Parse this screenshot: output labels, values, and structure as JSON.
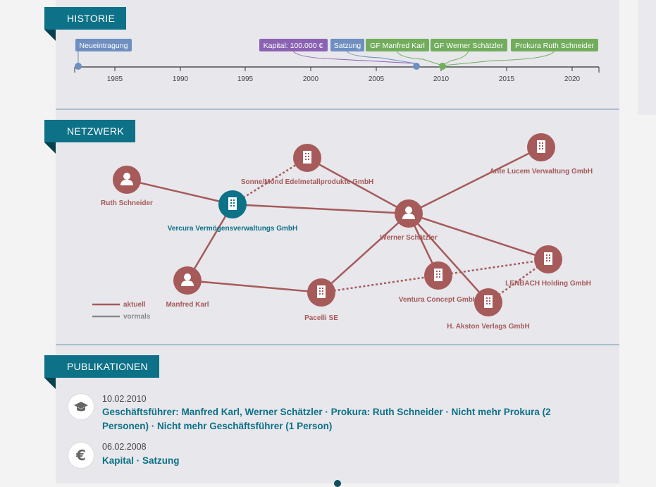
{
  "sections": {
    "historie": "HISTORIE",
    "netzwerk": "NETZWERK",
    "publikationen": "PUBLIKATIONEN"
  },
  "timeline": {
    "ticks": [
      "1985",
      "1990",
      "1995",
      "2000",
      "2005",
      "2010",
      "2015",
      "2020"
    ],
    "events": [
      {
        "label": "Neueintragung",
        "color": "#6e8fbf"
      },
      {
        "label": "Kapital: 100.000 €",
        "color": "#8b62b3"
      },
      {
        "label": "Satzung",
        "color": "#6e8fbf"
      },
      {
        "label": "GF Manfred Karl",
        "color": "#71ad5c"
      },
      {
        "label": "GF Werner Schätzler",
        "color": "#71ad5c"
      },
      {
        "label": "Prokura Ruth Schneider",
        "color": "#71ad5c"
      }
    ]
  },
  "network": {
    "nodes": [
      {
        "label": "Ruth Schneider",
        "type": "person"
      },
      {
        "label": "Vercura Vermögensverwaltungs GmbH",
        "type": "company",
        "highlight": true
      },
      {
        "label": "Sonne/Mond Edelmetallprodukte GmbH",
        "type": "company"
      },
      {
        "label": "Ante Lucem Verwaltung GmbH",
        "type": "company"
      },
      {
        "label": "Werner Schätzler",
        "type": "person"
      },
      {
        "label": "Manfred Karl",
        "type": "person"
      },
      {
        "label": "Pacelli SE",
        "type": "company"
      },
      {
        "label": "Ventura Concept GmbH",
        "type": "company"
      },
      {
        "label": "LENBACH Holding GmbH",
        "type": "company"
      },
      {
        "label": "H. Akston Verlags GmbH",
        "type": "company"
      }
    ],
    "legend": {
      "current": "aktuell",
      "former": "vormals"
    },
    "colors": {
      "current": "#a65a5a",
      "former": "#8a8a8a",
      "highlight": "#0d7187"
    }
  },
  "publications": [
    {
      "date": "10.02.2010",
      "icon": "graduation-cap-icon",
      "text": "Geschäftsführer: Manfred Karl, Werner Schätzler · Prokura: Ruth Schneider · Nicht mehr Prokura (2 Personen) · Nicht mehr Geschäftsführer (1 Person)"
    },
    {
      "date": "06.02.2008",
      "icon": "euro-icon",
      "text": "Kapital · Satzung"
    }
  ]
}
